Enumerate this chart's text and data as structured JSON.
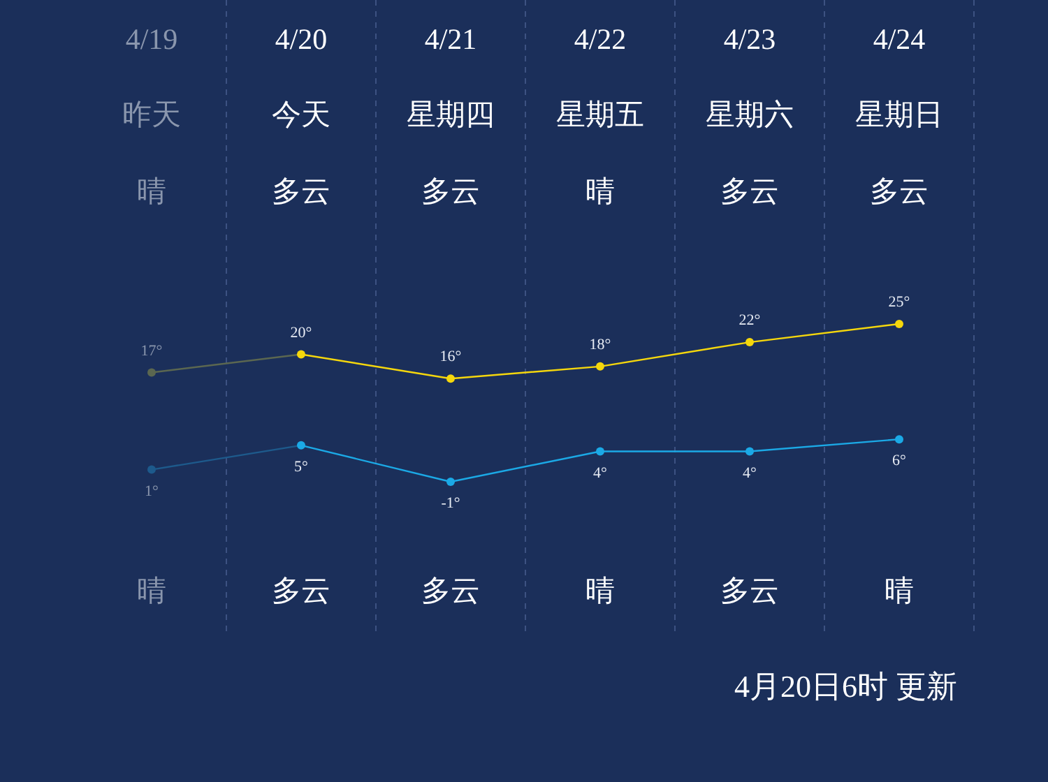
{
  "chart_data": {
    "type": "line",
    "categories": [
      "4/19",
      "4/20",
      "4/21",
      "4/22",
      "4/23",
      "4/24"
    ],
    "series": [
      {
        "name": null,
        "color": "#f5d70c",
        "colors": [
          "#5b6750",
          "#f5d70c",
          "#f5d70c",
          "#f5d70c",
          "#f5d70c",
          "#f5d70c"
        ],
        "values": [
          17,
          20,
          16,
          18,
          22,
          25
        ],
        "value_labels": [
          "17°",
          "20°",
          "16°",
          "18°",
          "22°",
          "25°"
        ]
      },
      {
        "name": null,
        "color": "#1ba9e6",
        "colors": [
          "#1d5a8c",
          "#1ba9e6",
          "#1ba9e6",
          "#1ba9e6",
          "#1ba9e6",
          "#1ba9e6"
        ],
        "values": [
          1,
          5,
          -1,
          4,
          4,
          6
        ],
        "value_labels": [
          "1°",
          "5°",
          "-1°",
          "4°",
          "4°",
          "6°"
        ]
      }
    ],
    "annotations": [
      "昨天",
      "今天",
      "星期四",
      "星期五",
      "星期六",
      "星期日",
      "晴",
      "多云",
      "多云",
      "晴",
      "多云",
      "多云",
      "晴",
      "多云",
      "多云",
      "晴",
      "多云",
      "晴",
      "4月20日6时 更新"
    ],
    "grid": "x",
    "marker": "circle",
    "line_style": "solid"
  }
}
